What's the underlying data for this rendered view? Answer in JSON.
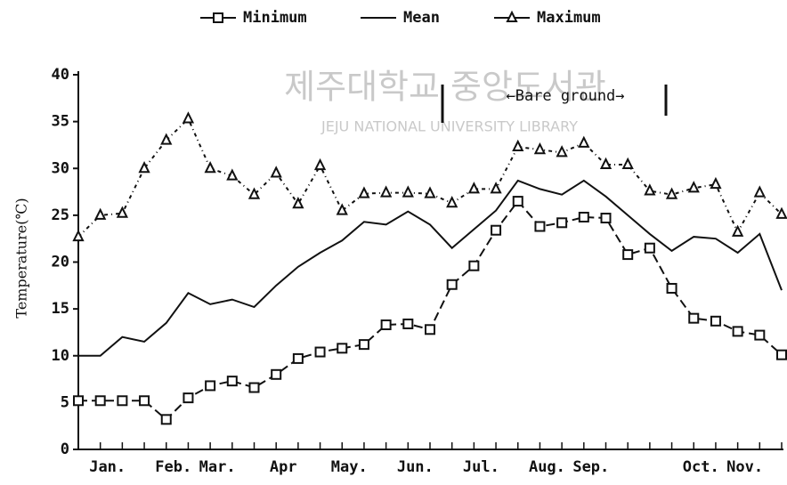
{
  "chart_data": {
    "type": "line",
    "watermark": "제주대학교 중앙도서관",
    "watermark_subtitle": "JEJU NATIONAL UNIVERSITY LIBRARY",
    "y_label": "Temperature(℃)",
    "annotation": "←Bare ground→",
    "categories": [
      null,
      "Jan.",
      null,
      null,
      "Feb.",
      null,
      "Mar.",
      null,
      null,
      "Apr",
      null,
      null,
      "May.",
      null,
      null,
      "Jun.",
      null,
      null,
      "Jul.",
      null,
      null,
      "Aug.",
      null,
      "Sep.",
      null,
      null,
      null,
      null,
      "Oct.",
      null,
      "Nov.",
      null,
      null
    ],
    "ylim": [
      0,
      40
    ],
    "yticks": [
      0,
      5,
      10,
      15,
      20,
      25,
      30,
      35,
      40
    ],
    "series": [
      {
        "name": "Minimum",
        "color": "#111111",
        "values": [
          5.2,
          5.2,
          5.2,
          5.2,
          3.2,
          5.5,
          6.8,
          7.3,
          6.6,
          8,
          9.7,
          10.4,
          10.8,
          11.2,
          13.3,
          13.4,
          12.8,
          17.6,
          19.6,
          23.4,
          26.5,
          23.8,
          24.2,
          24.8,
          24.7,
          20.8,
          21.5,
          17.2,
          14,
          13.7,
          12.6,
          12.2,
          10.1
        ]
      },
      {
        "name": "Mean",
        "color": "#111111",
        "values": [
          10,
          10,
          12,
          11.5,
          13.5,
          16.7,
          15.5,
          16,
          15.2,
          17.5,
          19.5,
          21,
          22.3,
          24.3,
          24,
          25.4,
          24,
          21.5,
          23.5,
          25.5,
          28.7,
          27.8,
          27.2,
          28.7,
          27,
          25,
          23,
          21.2,
          22.7,
          22.5,
          21,
          23,
          17
        ]
      },
      {
        "name": "Maximum",
        "color": "#111111",
        "values": [
          22.7,
          25,
          25.2,
          30,
          33,
          35.3,
          30,
          29.2,
          27.2,
          29.5,
          26.2,
          30.3,
          25.5,
          27.3,
          27.4,
          27.4,
          27.3,
          26.3,
          27.8,
          27.8,
          32.3,
          32,
          31.7,
          32.7,
          30.4,
          30.4,
          27.6,
          27.2,
          27.9,
          28.3,
          23.2,
          27.4,
          25.1
        ]
      }
    ]
  }
}
